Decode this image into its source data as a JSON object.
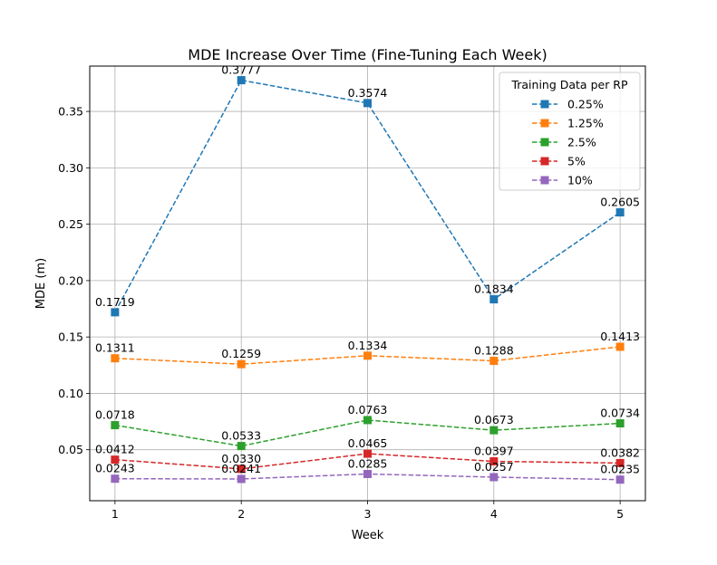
{
  "chart_data": {
    "type": "line",
    "title": "MDE Increase Over Time (Fine-Tuning Each Week)",
    "xlabel": "Week",
    "ylabel": "MDE (m)",
    "x": [
      1,
      2,
      3,
      4,
      5
    ],
    "x_tick_labels": [
      "1",
      "2",
      "3",
      "4",
      "5"
    ],
    "xlim": [
      0.8,
      5.2
    ],
    "ylim": [
      0.0048,
      0.3902
    ],
    "y_ticks": [
      0.05,
      0.1,
      0.15,
      0.2,
      0.25,
      0.3,
      0.35
    ],
    "y_tick_labels": [
      "0.05",
      "0.10",
      "0.15",
      "0.20",
      "0.25",
      "0.30",
      "0.35"
    ],
    "grid": true,
    "legend": {
      "title": "Training Data per RP",
      "placement": "upper right"
    },
    "series": [
      {
        "name": "0.25%",
        "color": "#1f77b4",
        "marker": "square",
        "line_style": "dashed",
        "values": [
          0.1719,
          0.3777,
          0.3574,
          0.1834,
          0.2605
        ],
        "labels": [
          "0.1719",
          "0.3777",
          "0.3574",
          "0.1834",
          "0.2605"
        ]
      },
      {
        "name": "1.25%",
        "color": "#ff7f0e",
        "marker": "square",
        "line_style": "dashed",
        "values": [
          0.1311,
          0.1259,
          0.1334,
          0.1288,
          0.1413
        ],
        "labels": [
          "0.1311",
          "0.1259",
          "0.1334",
          "0.1288",
          "0.1413"
        ]
      },
      {
        "name": "2.5%",
        "color": "#2ca02c",
        "marker": "square",
        "line_style": "dashed",
        "values": [
          0.0718,
          0.0533,
          0.0763,
          0.0673,
          0.0734
        ],
        "labels": [
          "0.0718",
          "0.0533",
          "0.0763",
          "0.0673",
          "0.0734"
        ]
      },
      {
        "name": "5%",
        "color": "#d62728",
        "marker": "square",
        "line_style": "dashed",
        "values": [
          0.0412,
          0.033,
          0.0465,
          0.0397,
          0.0382
        ],
        "labels": [
          "0.0412",
          "0.0330",
          "0.0465",
          "0.0397",
          "0.0382"
        ]
      },
      {
        "name": "10%",
        "color": "#9467bd",
        "marker": "square",
        "line_style": "dashed",
        "values": [
          0.0243,
          0.0241,
          0.0285,
          0.0257,
          0.0235
        ],
        "labels": [
          "0.0243",
          "0.0241",
          "0.0285",
          "0.0257",
          "0.0235"
        ]
      }
    ]
  }
}
